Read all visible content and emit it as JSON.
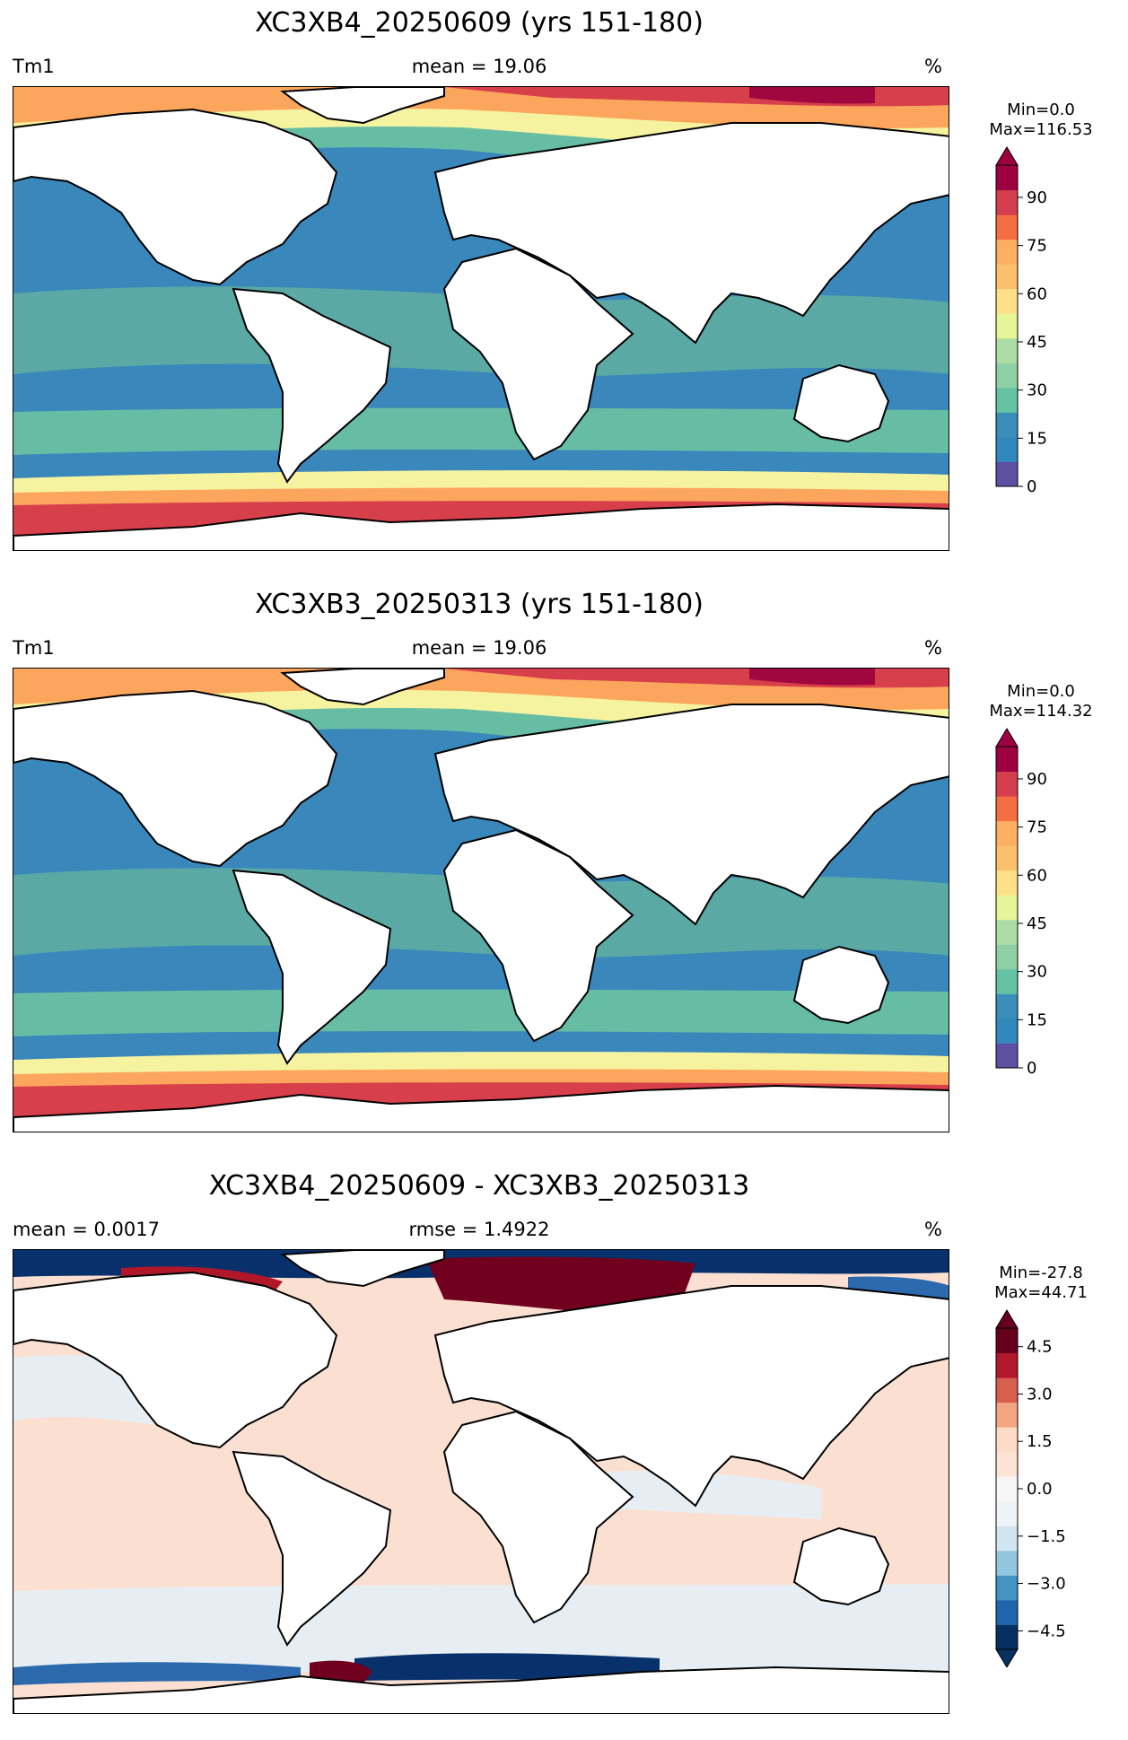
{
  "panels": [
    {
      "title": "XC3XB4_20250609 (yrs 151-180)",
      "left_label": "Tm1",
      "center_label": "mean = 19.06",
      "right_label": "%",
      "min_text": "Min=0.0",
      "max_text": "Max=116.53",
      "colorbar": {
        "type": "sequential",
        "ticks": [
          "0",
          "15",
          "30",
          "45",
          "60",
          "75",
          "90"
        ],
        "colors": [
          "#5e4fa2",
          "#3288bd",
          "#3a8fba",
          "#66c2a5",
          "#8fd1a5",
          "#abdda4",
          "#e6f598",
          "#fee08b",
          "#fdc06a",
          "#fdae61",
          "#f46d43",
          "#d53e4f",
          "#9e0142"
        ],
        "extend": "max"
      }
    },
    {
      "title": "XC3XB3_20250313 (yrs 151-180)",
      "left_label": "Tm1",
      "center_label": "mean = 19.06",
      "right_label": "%",
      "min_text": "Min=0.0",
      "max_text": "Max=114.32",
      "colorbar": {
        "type": "sequential",
        "ticks": [
          "0",
          "15",
          "30",
          "45",
          "60",
          "75",
          "90"
        ],
        "colors": [
          "#5e4fa2",
          "#3288bd",
          "#3a8fba",
          "#66c2a5",
          "#8fd1a5",
          "#abdda4",
          "#e6f598",
          "#fee08b",
          "#fdc06a",
          "#fdae61",
          "#f46d43",
          "#d53e4f",
          "#9e0142"
        ],
        "extend": "max"
      }
    },
    {
      "title": "XC3XB4_20250609 - XC3XB3_20250313",
      "left_label": "mean = 0.0017",
      "center_label": "rmse = 1.4922",
      "right_label": "%",
      "min_text": "Min=-27.8",
      "max_text": "Max=44.71",
      "colorbar": {
        "type": "diverging",
        "ticks": [
          "−4.5",
          "−3.0",
          "−1.5",
          "0.0",
          "1.5",
          "3.0",
          "4.5"
        ],
        "colors": [
          "#053061",
          "#2166ac",
          "#4393c3",
          "#92c5de",
          "#d1e5f0",
          "#eef3f6",
          "#f7f7f7",
          "#fbe3d6",
          "#fddbc7",
          "#f4a582",
          "#d6604d",
          "#b2182b",
          "#67001f"
        ],
        "extend": "both"
      }
    }
  ],
  "map_colors": {
    "ocean_main": "#3a87bc",
    "ocean_band": "#5aa9a4",
    "ocean_coastal": "#66bda4",
    "polar_yellow": "#f6f3a0",
    "polar_orange": "#fba65c",
    "polar_red": "#d73f4b",
    "polar_dark": "#a0073f",
    "diff_base": "#fbe0d2",
    "diff_pale": "#e7eef3",
    "diff_red": "#b0182a",
    "diff_darkred": "#70001e",
    "diff_blue": "#2c6aad",
    "diff_darkblue": "#08306b"
  }
}
